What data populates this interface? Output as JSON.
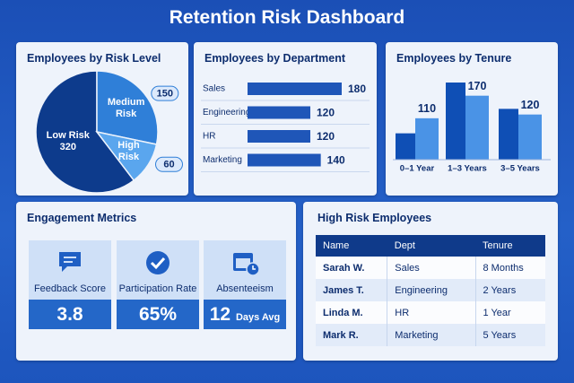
{
  "title": "Retention Risk Dashboard",
  "chart_data": [
    {
      "type": "pie",
      "title": "Employees by Risk Level",
      "categories": [
        "Low Risk",
        "Medium Risk",
        "High Risk"
      ],
      "values": [
        320,
        150,
        60
      ],
      "colors": [
        "#0d3b8c",
        "#2f7fd8",
        "#5aa6ee"
      ]
    },
    {
      "type": "hbar",
      "title": "Employees by Department",
      "categories": [
        "Sales",
        "Engineering",
        "HR",
        "Marketing"
      ],
      "values": [
        180,
        120,
        120,
        140
      ],
      "color": "#1f56b8"
    },
    {
      "type": "groupbar",
      "title": "Employees by Tenure",
      "categories": [
        "0–1 Year",
        "1–3 Years",
        "3–5 Years"
      ],
      "series": [
        {
          "color": "#0f4fb5",
          "values": [
            70,
            205,
            135
          ]
        },
        {
          "color": "#4a93e6",
          "values": [
            110,
            170,
            120
          ]
        }
      ]
    }
  ],
  "engagement": {
    "title": "Engagement Metrics",
    "metrics": [
      {
        "label": "Feedback Score",
        "value": "3.8"
      },
      {
        "label": "Participation Rate",
        "value": "65%"
      },
      {
        "label": "Absenteeism",
        "value": "12",
        "unit": "Days Avg"
      }
    ]
  },
  "high_risk_table": {
    "title": "High Risk Employees",
    "columns": [
      "Name",
      "Dept",
      "Tenure"
    ],
    "rows": [
      [
        "Sarah W.",
        "Sales",
        "8 Months"
      ],
      [
        "James T.",
        "Engineering",
        "2 Years"
      ],
      [
        "Linda M.",
        "HR",
        "1 Year"
      ],
      [
        "Mark R.",
        "Marketing",
        "5 Years"
      ]
    ]
  }
}
